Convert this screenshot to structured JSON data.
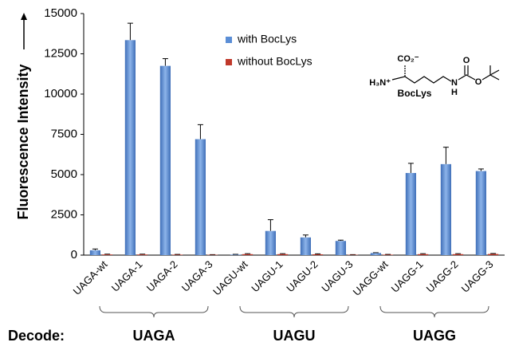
{
  "chart_data": {
    "type": "bar",
    "y_label": "Fluorescence Intensity",
    "categories": [
      "UAGA-wt",
      "UAGA-1",
      "UAGA-2",
      "UAGA-3",
      "UAGU-wt",
      "UAGU-1",
      "UAGU-2",
      "UAGU-3",
      "UAGG-wt",
      "UAGG-1",
      "UAGG-2",
      "UAGG-3"
    ],
    "series": [
      {
        "name": "with BocLys",
        "color": "#5b8ed6",
        "values": [
          300,
          13350,
          11750,
          7200,
          30,
          1500,
          1100,
          880,
          130,
          5100,
          5650,
          5220
        ],
        "errors": [
          80,
          1050,
          450,
          900,
          20,
          700,
          150,
          50,
          20,
          600,
          1050,
          130
        ]
      },
      {
        "name": "without BocLys",
        "color": "#c0392b",
        "values": [
          40,
          40,
          30,
          20,
          60,
          60,
          50,
          20,
          30,
          60,
          60,
          70
        ],
        "errors": [
          20,
          20,
          15,
          10,
          30,
          30,
          30,
          10,
          15,
          30,
          30,
          30
        ]
      }
    ],
    "ylim": [
      0,
      15000
    ],
    "yticks": [
      0,
      2500,
      5000,
      7500,
      10000,
      12500,
      15000
    ],
    "group_title": "Decode:",
    "groups": [
      "UAGA",
      "UAGU",
      "UAGG"
    ],
    "annotation": {
      "label": "BocLys",
      "carboxylate": "CO₂⁻",
      "amine": "H₃N⁺",
      "nitrogen": "N",
      "hydrogen": "H",
      "oxygen_top": "O",
      "oxygen_ester": "O"
    }
  }
}
